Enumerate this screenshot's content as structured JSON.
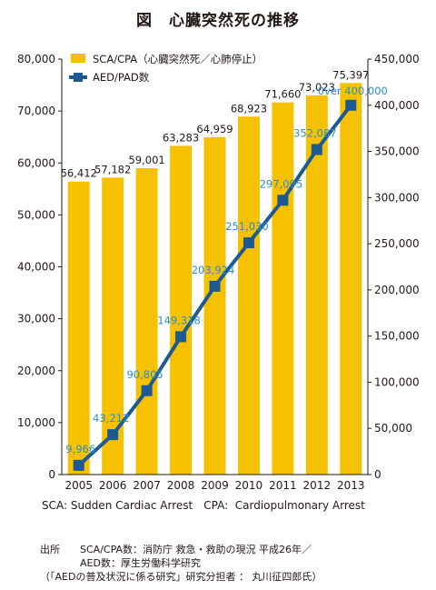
{
  "title": "図　心臓突然死の推移",
  "chart_data": {
    "type": "bar+line",
    "categories": [
      "2005",
      "2006",
      "2007",
      "2008",
      "2009",
      "2010",
      "2011",
      "2012",
      "2013"
    ],
    "series": [
      {
        "name": "SCA/CPA（心臓突然死／心肺停止）",
        "type": "bar",
        "axis": "left",
        "color": "#f5c100",
        "values": [
          56412,
          57182,
          59001,
          63283,
          64959,
          68923,
          71660,
          73023,
          75397
        ],
        "labels": [
          "56,412",
          "57,182",
          "59,001",
          "63,283",
          "64,959",
          "68,923",
          "71,660",
          "73,023",
          "75,397"
        ]
      },
      {
        "name": "AED/PAD数",
        "type": "line",
        "axis": "right",
        "color": "#1d5a94",
        "values": [
          9966,
          43212,
          90805,
          149318,
          203924,
          251030,
          297095,
          352087,
          400000
        ],
        "labels": [
          "9,966",
          "43,212",
          "90,805",
          "149,318",
          "203,924",
          "251,030",
          "297,095",
          "352,087",
          "0ver 400,000"
        ]
      }
    ],
    "y_left": {
      "range": [
        0,
        80000
      ],
      "ticks": [
        "0",
        "10,000",
        "20,000",
        "30,000",
        "40,000",
        "50,000",
        "60,000",
        "70,000",
        "80,000"
      ]
    },
    "y_right": {
      "range": [
        0,
        450000
      ],
      "ticks": [
        "0",
        "50,000",
        "100,000",
        "150,000",
        "200,000",
        "250,000",
        "300,000",
        "350,000",
        "400,000",
        "450,000"
      ]
    },
    "legend_position": "top-left",
    "grid": false
  },
  "abbreviations": "SCA: Sudden Cardiac Arrest　CPA:  Cardiopulmonary Arrest",
  "source": {
    "label": "出所",
    "line1": "SCA/CPA数：消防庁 救急・救助の現況 平成26年／",
    "line2": "AED数：厚生労働科学研究",
    "line3": "（「AEDの普及状況に係る研究」研究分担者 ： 丸川征四郎氏）"
  }
}
